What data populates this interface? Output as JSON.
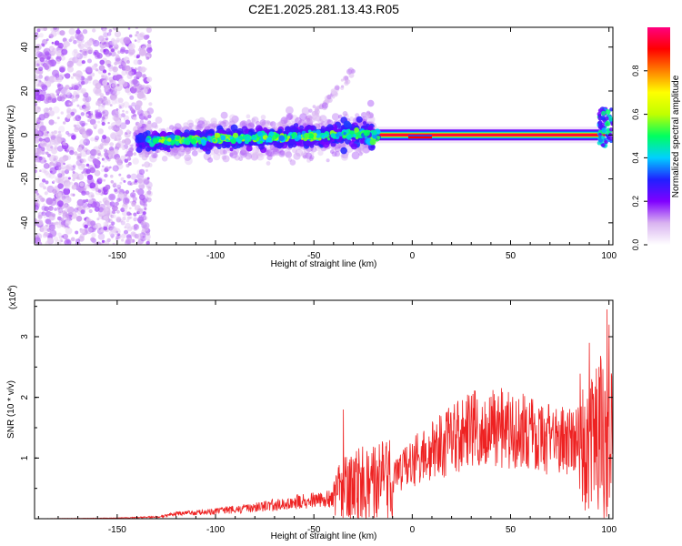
{
  "figure_title": "C2E1.2025.281.13.43.R05",
  "chart_data": [
    {
      "id": "spectrogram",
      "type": "heatmap",
      "title": "C2E1.2025.281.13.43.R05",
      "xlabel": "Height of straight line (km)",
      "ylabel": "Frequency (Hz)",
      "xlim": [
        -192,
        102
      ],
      "ylim": [
        -50,
        49
      ],
      "xticks": [
        -150,
        -100,
        -50,
        0,
        50,
        100
      ],
      "xtick_labels": [
        "-150",
        "-100",
        "-50",
        "0",
        "50",
        "100"
      ],
      "yticks": [
        -40,
        -20,
        0,
        20,
        40
      ],
      "ytick_labels": [
        "-40",
        "-20",
        "0",
        "20",
        "40"
      ],
      "colorbar": {
        "label": "Normalized spectral amplitude",
        "range": [
          0,
          1
        ],
        "ticks": [
          0.0,
          0.2,
          0.4,
          0.6,
          0.8
        ],
        "tick_labels": [
          "0.0",
          "0.2",
          "0.4",
          "0.6",
          "0.8"
        ],
        "colormap": [
          "#ffffff",
          "#d9b3f0",
          "#8000ff",
          "#2020ff",
          "#00d0ff",
          "#00ff60",
          "#c0ff00",
          "#ffff00",
          "#ff8000",
          "#ff0000",
          "#ff0080"
        ]
      },
      "features": [
        {
          "name": "diffuse noise region",
          "x_range": [
            -192,
            -133
          ],
          "f_range": [
            -50,
            49
          ],
          "amplitude": 0.05
        },
        {
          "name": "signal band",
          "x_range": [
            -140,
            -20
          ],
          "f_range": [
            -8,
            5
          ],
          "amplitude": 0.4
        },
        {
          "name": "rising branch",
          "x_range": [
            -55,
            -30
          ],
          "f_range": [
            5,
            28
          ],
          "amplitude": 0.1
        },
        {
          "name": "carrier line",
          "x_range": [
            -20,
            98
          ],
          "f_center": 0,
          "amplitude": 1.0
        },
        {
          "name": "end spike",
          "x_range": [
            95,
            102
          ],
          "f_range": [
            -5,
            12
          ],
          "amplitude": 0.6
        }
      ]
    },
    {
      "id": "snr",
      "type": "line",
      "xlabel": "Height of straight line (km)",
      "ylabel": "SNR (10 * v/v)",
      "yscale_label": "(x10",
      "yscale_exp": "4",
      "yscale_close": ")",
      "xlim": [
        -192,
        102
      ],
      "ylim": [
        0,
        3.6
      ],
      "xticks": [
        -150,
        -100,
        -50,
        0,
        50,
        100
      ],
      "xtick_labels": [
        "-150",
        "-100",
        "-50",
        "0",
        "50",
        "100"
      ],
      "yticks": [
        1,
        2,
        3
      ],
      "ytick_labels": [
        "1",
        "2",
        "3"
      ],
      "color": "#ee2222",
      "envelope_x": [
        -192,
        -150,
        -130,
        -120,
        -100,
        -80,
        -60,
        -40,
        -35,
        -30,
        -20,
        -10,
        0,
        10,
        20,
        30,
        40,
        50,
        60,
        70,
        80,
        90,
        95,
        100,
        102
      ],
      "envelope_y": [
        0.0,
        0.01,
        0.03,
        0.08,
        0.12,
        0.18,
        0.27,
        0.33,
        0.5,
        0.55,
        0.6,
        0.62,
        0.95,
        1.1,
        1.3,
        1.45,
        1.52,
        1.5,
        1.38,
        1.3,
        1.32,
        1.28,
        1.4,
        1.5,
        1.25
      ],
      "spikes": [
        {
          "x": -35,
          "y": 1.8
        },
        {
          "x": 90,
          "y": 2.9
        },
        {
          "x": 95,
          "y": 2.5
        },
        {
          "x": 98,
          "y": 2.1
        },
        {
          "x": 99,
          "y": 3.45
        },
        {
          "x": 100,
          "y": 3.2
        }
      ]
    }
  ]
}
